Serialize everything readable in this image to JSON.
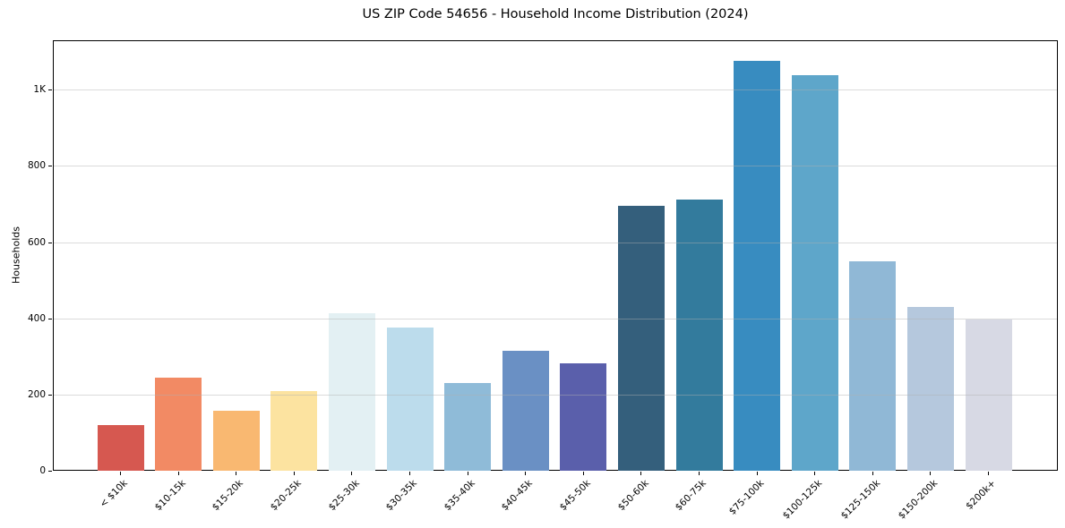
{
  "title": "US ZIP Code 54656 - Household Income Distribution (2024)",
  "chart_data": {
    "type": "bar",
    "title": "US ZIP Code 54656 - Household Income Distribution (2024)",
    "xlabel": "",
    "ylabel": "Households",
    "categories": [
      "< $10k",
      "$10-15k",
      "$15-20k",
      "$20-25k",
      "$25-30k",
      "$30-35k",
      "$35-40k",
      "$40-45k",
      "$45-50k",
      "$50-60k",
      "$60-75k",
      "$75-100k",
      "$100-125k",
      "$125-150k",
      "$150-200k",
      "$200k+"
    ],
    "values": [
      119,
      245,
      158,
      210,
      413,
      375,
      230,
      314,
      281,
      695,
      712,
      1076,
      1038,
      549,
      430,
      396
    ],
    "bar_colors": [
      "#d65850",
      "#f28a64",
      "#f9b871",
      "#fce3a0",
      "#e3f0f3",
      "#bcdcec",
      "#8fbbd8",
      "#6a90c4",
      "#5a5fab",
      "#345f7c",
      "#337b9d",
      "#388cc0",
      "#5ea6ca",
      "#90b8d6",
      "#b5c8dd",
      "#d7d9e4"
    ],
    "ylim": [
      0,
      1130
    ],
    "yticks": {
      "values": [
        0,
        200,
        400,
        600,
        800,
        1000
      ],
      "labels": [
        "0",
        "200",
        "400",
        "600",
        "800",
        "1K"
      ]
    },
    "grid": "horizontal",
    "grid_color": "#b0b0b0",
    "legend": "none",
    "background": "#ffffff",
    "spine_color": "#000000"
  }
}
